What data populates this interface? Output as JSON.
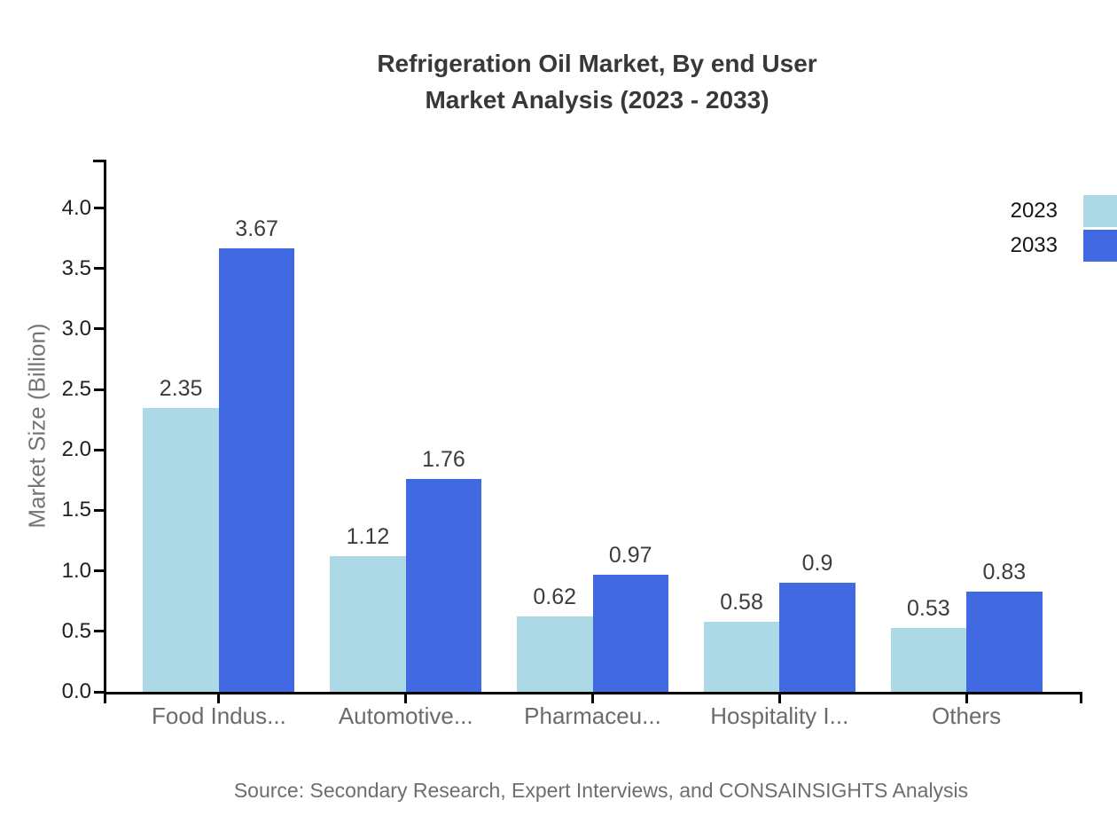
{
  "chart_data": {
    "type": "bar",
    "title": "Refrigeration Oil Market, By end User Market Analysis (2023 - 2033)",
    "title_lines": [
      "Refrigeration Oil Market, By end User",
      "Market Analysis (2023 - 2033)"
    ],
    "categories": [
      "Food Indus...",
      "Automotive...",
      "Pharmaceu...",
      "Hospitality I...",
      "Others"
    ],
    "series": [
      {
        "name": "2023",
        "color": "#ADD8E6",
        "values": [
          2.35,
          1.12,
          0.62,
          0.58,
          0.53
        ]
      },
      {
        "name": "2033",
        "color": "#4169E1",
        "values": [
          3.67,
          1.76,
          0.97,
          0.9,
          0.83
        ]
      }
    ],
    "xlabel": "",
    "ylabel": "Market Size (Billion)",
    "yticks": [
      0,
      0.5,
      1,
      1.5,
      2,
      2.5,
      3,
      3.5,
      4
    ],
    "ylim": [
      0,
      4.4
    ],
    "grid": false,
    "legend_position": "top-right",
    "source_note": "Source: Secondary Research, Expert Interviews, and CONSAINSIGHTS Analysis",
    "axis_color": "#000000",
    "background_color": "#FFFFFF"
  }
}
